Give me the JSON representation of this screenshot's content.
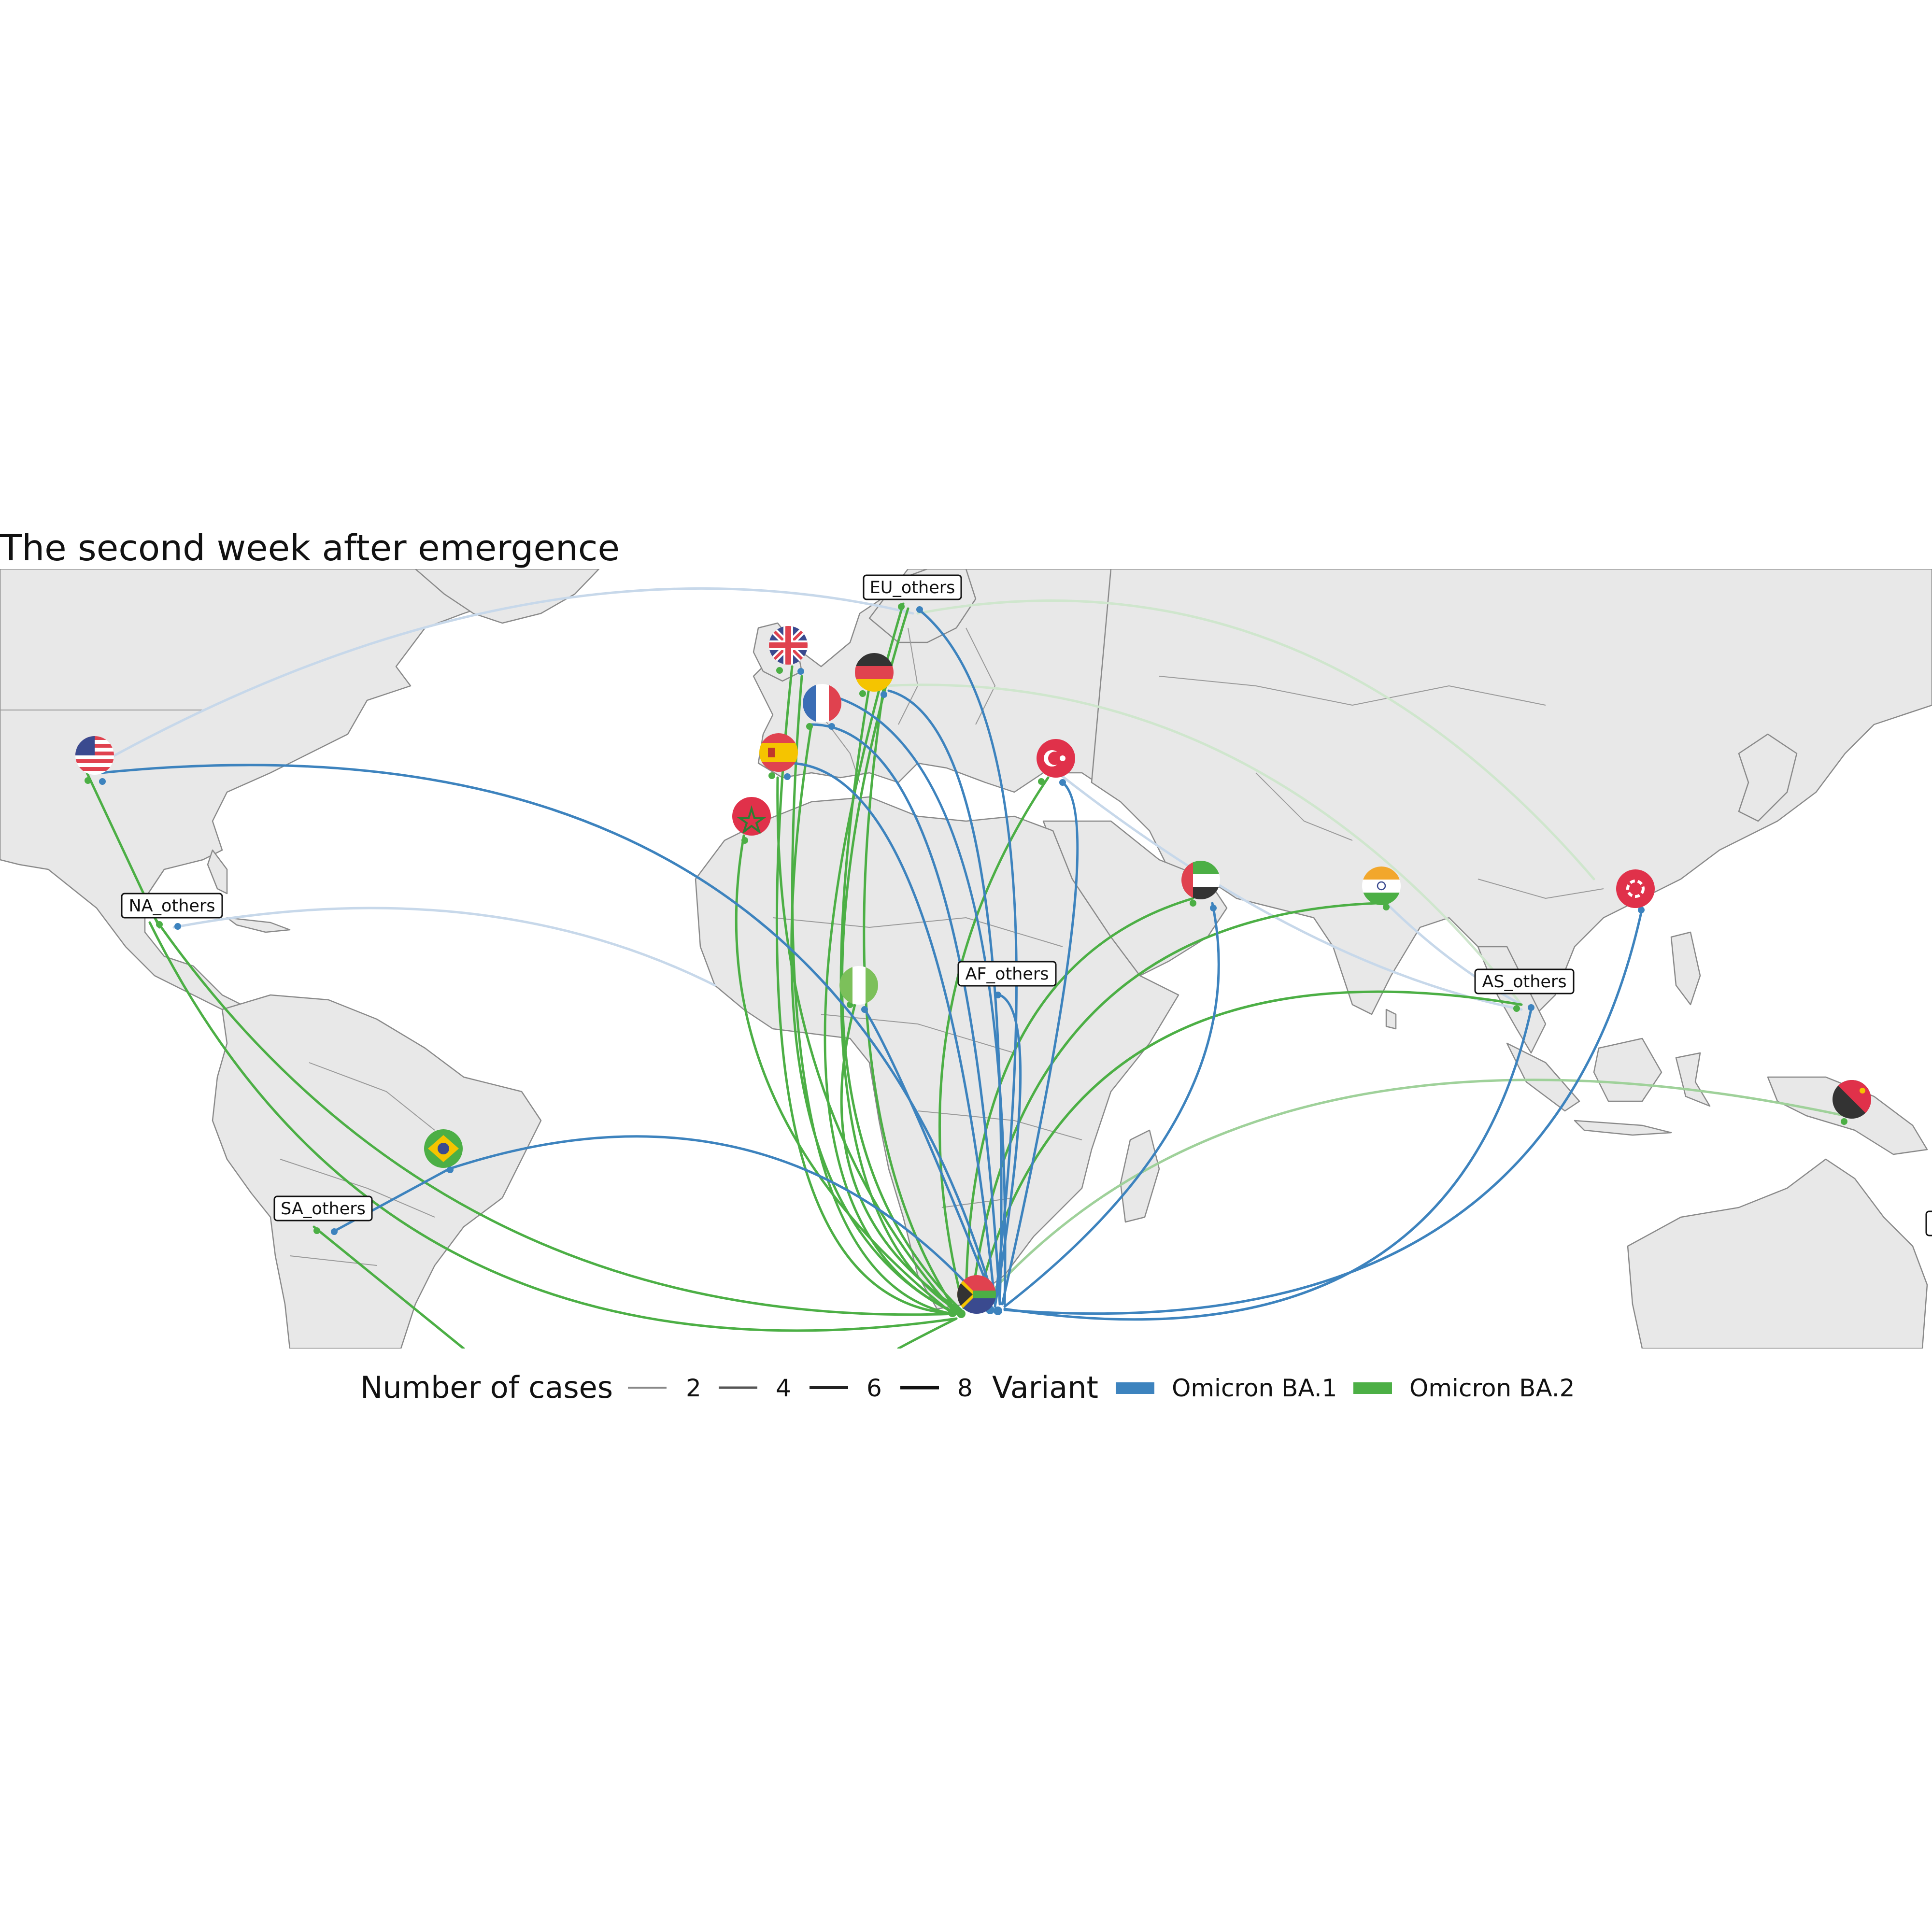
{
  "title": "The second week after emergence",
  "colors": {
    "ba1": "#3d83be",
    "ba2": "#4caf45",
    "land": "#e8e8e8",
    "border": "#8a8a8a",
    "ocean": "#ffffff"
  },
  "source": {
    "country": "South Africa",
    "flag": "flag-south-africa"
  },
  "destinations": [
    {
      "name": "United States",
      "flag": "flag-usa",
      "type": "flag"
    },
    {
      "name": "United Kingdom",
      "flag": "flag-uk",
      "type": "flag"
    },
    {
      "name": "Germany",
      "flag": "flag-germany",
      "type": "flag"
    },
    {
      "name": "France",
      "flag": "flag-france",
      "type": "flag"
    },
    {
      "name": "Spain",
      "flag": "flag-spain",
      "type": "flag"
    },
    {
      "name": "Morocco",
      "flag": "flag-morocco",
      "type": "flag"
    },
    {
      "name": "Turkey",
      "flag": "flag-turkey",
      "type": "flag"
    },
    {
      "name": "United Arab Emirates",
      "flag": "flag-uae",
      "type": "flag"
    },
    {
      "name": "India",
      "flag": "flag-india",
      "type": "flag"
    },
    {
      "name": "Hong Kong",
      "flag": "flag-hong-kong",
      "type": "flag"
    },
    {
      "name": "Nigeria",
      "flag": "flag-nigeria",
      "type": "flag"
    },
    {
      "name": "Brazil",
      "flag": "flag-brazil",
      "type": "flag"
    },
    {
      "name": "Papua New Guinea",
      "flag": "flag-papua-new-guinea",
      "type": "flag"
    },
    {
      "name": "EU_others",
      "type": "label"
    },
    {
      "name": "NA_others",
      "type": "label"
    },
    {
      "name": "AF_others",
      "type": "label"
    },
    {
      "name": "AS_others",
      "type": "label"
    },
    {
      "name": "SA_others",
      "type": "label"
    }
  ],
  "labels": {
    "eu_others": "EU_others",
    "na_others": "NA_others",
    "af_others": "AF_others",
    "as_others": "AS_others",
    "sa_others": "SA_others"
  },
  "legend": {
    "cases_title": "Number of cases",
    "cases": [
      "2",
      "4",
      "6",
      "8"
    ],
    "variant_title": "Variant",
    "variants": [
      {
        "label": "Omicron BA.1",
        "color": "#3d83be"
      },
      {
        "label": "Omicron BA.2",
        "color": "#4caf45"
      }
    ]
  }
}
